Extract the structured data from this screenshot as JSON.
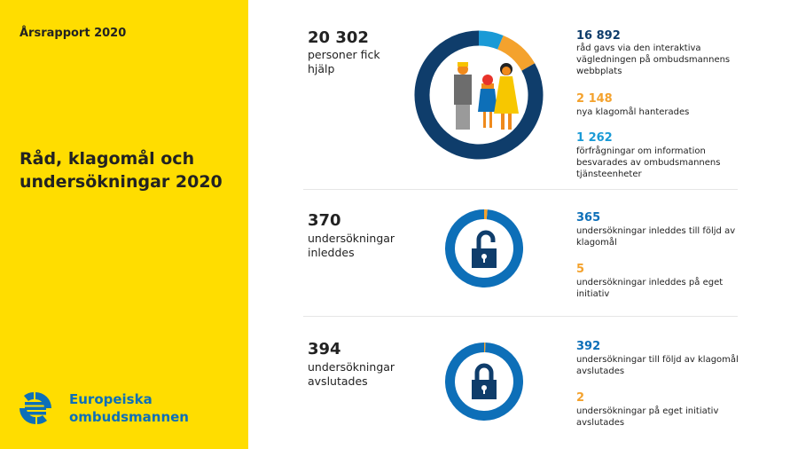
{
  "left": {
    "report": "Årsrapport 2020",
    "title": "Råd, klagomål och undersökningar 2020",
    "logo": [
      "Europeiska",
      "ombudsmannen"
    ]
  },
  "colors": {
    "yellow": "#FFDD00",
    "navy": "#0f3d6b",
    "orange": "#f4a22d",
    "lightblue": "#1a9ad6",
    "blue": "#0d6fb8"
  },
  "sections": [
    {
      "total": "20 302",
      "label": "personer fick hjälp",
      "icon": "family-icon",
      "items": [
        {
          "value": "16 892",
          "n": 16892,
          "text": "råd gavs via den interaktiva vägledningen på ombudsmannens webbplats",
          "color": "#0f3d6b"
        },
        {
          "value": "2 148",
          "n": 2148,
          "text": "nya klagomål hanterades",
          "color": "#f4a22d"
        },
        {
          "value": "1 262",
          "n": 1262,
          "text": "förfrågningar om information besvarades av ombudsmannens tjänsteenheter",
          "color": "#1a9ad6"
        }
      ]
    },
    {
      "total": "370",
      "label": "undersökningar inleddes",
      "icon": "unlocked-padlock-icon",
      "items": [
        {
          "value": "365",
          "n": 365,
          "text": "undersökningar inleddes till följd av klagomål",
          "color": "#0d6fb8"
        },
        {
          "value": "5",
          "n": 5,
          "text": "undersökningar inleddes på eget initiativ",
          "color": "#f4a22d"
        }
      ]
    },
    {
      "total": "394",
      "label": "undersökningar avslutades",
      "icon": "locked-padlock-icon",
      "items": [
        {
          "value": "392",
          "n": 392,
          "text": "undersökningar till följd av klagomål avslutades",
          "color": "#0d6fb8"
        },
        {
          "value": "2",
          "n": 2,
          "text": "undersökningar på eget initiativ avslutades",
          "color": "#f4a22d"
        }
      ]
    }
  ]
}
